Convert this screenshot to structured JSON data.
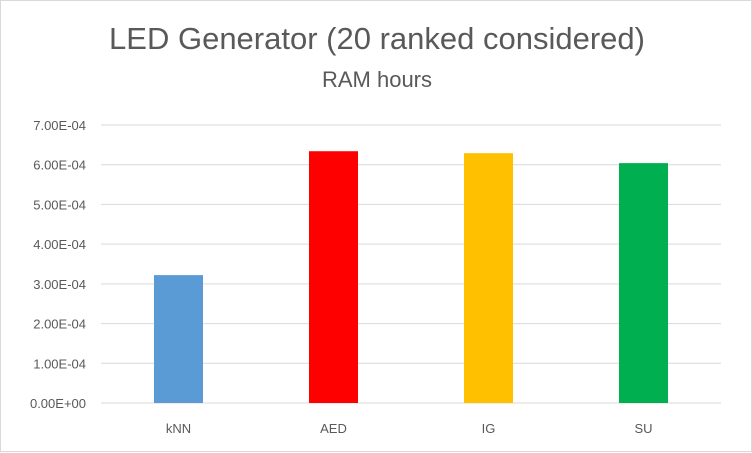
{
  "chart_data": {
    "type": "bar",
    "title": "LED Generator (20 ranked considered)",
    "subtitle": "RAM hours",
    "xlabel": "",
    "ylabel": "",
    "categories": [
      "kNN",
      "AED",
      "IG",
      "SU"
    ],
    "values": [
      0.000322,
      0.000634,
      0.000629,
      0.000604
    ],
    "colors": [
      "#5b9bd5",
      "#ff0000",
      "#ffc000",
      "#00b050"
    ],
    "ylim": [
      0,
      0.0007
    ],
    "yticks": [
      {
        "value": 0.0,
        "label": "0.00E+00"
      },
      {
        "value": 0.0001,
        "label": "1.00E-04"
      },
      {
        "value": 0.0002,
        "label": "2.00E-04"
      },
      {
        "value": 0.0003,
        "label": "3.00E-04"
      },
      {
        "value": 0.0004,
        "label": "4.00E-04"
      },
      {
        "value": 0.0005,
        "label": "5.00E-04"
      },
      {
        "value": 0.0006,
        "label": "6.00E-04"
      },
      {
        "value": 0.0007,
        "label": "7.00E-04"
      }
    ],
    "grid": true,
    "legend": "none"
  }
}
